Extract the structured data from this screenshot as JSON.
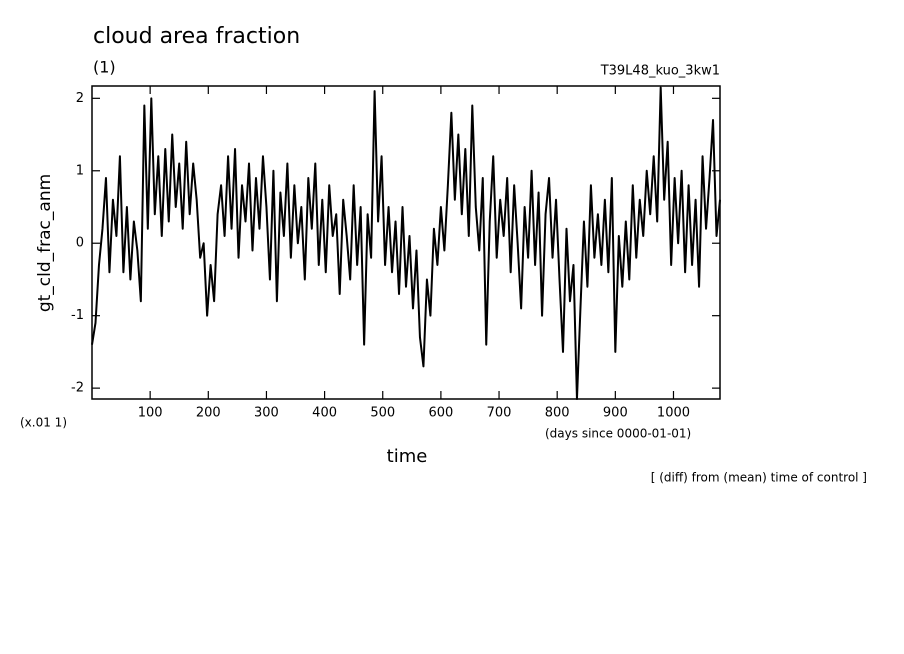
{
  "chart_data": {
    "type": "line",
    "title": "cloud area fraction",
    "subtitle": "(1)",
    "run_label": "T39L48_kuo_3kw1",
    "y_label": "gt_cld_frac_anm",
    "y_unit": "(x.01 1)",
    "x_label": "time",
    "x_unit": "(days since 0000-01-01)",
    "note": "[ (diff) from (mean) time of control ]",
    "color": "#000000",
    "xlim": [
      0,
      1080
    ],
    "ylim": [
      -2.15,
      2.17
    ],
    "xticks": [
      100,
      200,
      300,
      400,
      500,
      600,
      700,
      800,
      900,
      1000
    ],
    "yticks": [
      -2,
      -1,
      0,
      1,
      2
    ],
    "grid": false,
    "x": [
      0,
      6,
      12,
      18,
      24,
      30,
      36,
      42,
      48,
      54,
      60,
      66,
      72,
      78,
      84,
      90,
      96,
      102,
      108,
      114,
      120,
      126,
      132,
      138,
      144,
      150,
      156,
      162,
      168,
      174,
      180,
      186,
      192,
      198,
      204,
      210,
      216,
      222,
      228,
      234,
      240,
      246,
      252,
      258,
      264,
      270,
      276,
      282,
      288,
      294,
      300,
      306,
      312,
      318,
      324,
      330,
      336,
      342,
      348,
      354,
      360,
      366,
      372,
      378,
      384,
      390,
      396,
      402,
      408,
      414,
      420,
      426,
      432,
      438,
      444,
      450,
      456,
      462,
      468,
      474,
      480,
      486,
      492,
      498,
      504,
      510,
      516,
      522,
      528,
      534,
      540,
      546,
      552,
      558,
      564,
      570,
      576,
      582,
      588,
      594,
      600,
      606,
      612,
      618,
      624,
      630,
      636,
      642,
      648,
      654,
      660,
      666,
      672,
      678,
      684,
      690,
      696,
      702,
      708,
      714,
      720,
      726,
      732,
      738,
      744,
      750,
      756,
      762,
      768,
      774,
      780,
      786,
      792,
      798,
      804,
      810,
      816,
      822,
      828,
      834,
      840,
      846,
      852,
      858,
      864,
      870,
      876,
      882,
      888,
      894,
      900,
      906,
      912,
      918,
      924,
      930,
      936,
      942,
      948,
      954,
      960,
      966,
      972,
      978,
      984,
      990,
      996,
      1002,
      1008,
      1014,
      1020,
      1026,
      1032,
      1038,
      1044,
      1050,
      1056,
      1062,
      1068,
      1074,
      1080
    ],
    "values": [
      -1.4,
      -1.1,
      -0.3,
      0.2,
      0.9,
      -0.4,
      0.6,
      0.1,
      1.2,
      -0.4,
      0.5,
      -0.5,
      0.3,
      -0.1,
      -0.8,
      1.9,
      0.2,
      2.0,
      0.4,
      1.2,
      0.1,
      1.3,
      0.3,
      1.5,
      0.5,
      1.1,
      0.2,
      1.4,
      0.4,
      1.1,
      0.6,
      -0.2,
      0.0,
      -1.0,
      -0.3,
      -0.8,
      0.4,
      0.8,
      0.1,
      1.2,
      0.2,
      1.3,
      -0.2,
      0.8,
      0.3,
      1.1,
      -0.1,
      0.9,
      0.2,
      1.2,
      0.5,
      -0.5,
      1.0,
      -0.8,
      0.7,
      0.1,
      1.1,
      -0.2,
      0.8,
      0.0,
      0.5,
      -0.5,
      0.9,
      0.2,
      1.1,
      -0.3,
      0.6,
      -0.4,
      0.8,
      0.1,
      0.4,
      -0.7,
      0.6,
      0.1,
      -0.5,
      0.8,
      -0.3,
      0.5,
      -1.4,
      0.4,
      -0.2,
      2.1,
      0.3,
      1.2,
      -0.3,
      0.5,
      -0.4,
      0.3,
      -0.7,
      0.5,
      -0.6,
      0.1,
      -0.9,
      -0.1,
      -1.3,
      -1.7,
      -0.5,
      -1.0,
      0.2,
      -0.3,
      0.5,
      -0.1,
      0.8,
      1.8,
      0.6,
      1.5,
      0.4,
      1.3,
      0.1,
      1.9,
      0.5,
      -0.1,
      0.9,
      -1.4,
      0.3,
      1.2,
      -0.2,
      0.6,
      0.1,
      0.9,
      -0.4,
      0.8,
      0.0,
      -0.9,
      0.5,
      -0.2,
      1.0,
      -0.3,
      0.7,
      -1.0,
      0.4,
      0.9,
      -0.2,
      0.6,
      -0.5,
      -1.5,
      0.2,
      -0.8,
      -0.3,
      -2.15,
      -0.9,
      0.3,
      -0.6,
      0.8,
      -0.2,
      0.4,
      -0.3,
      0.6,
      -0.4,
      0.9,
      -1.5,
      0.1,
      -0.6,
      0.3,
      -0.5,
      0.8,
      -0.2,
      0.6,
      0.1,
      1.0,
      0.4,
      1.2,
      0.3,
      2.15,
      0.6,
      1.4,
      -0.3,
      0.9,
      0.0,
      1.0,
      -0.4,
      0.8,
      -0.3,
      0.6,
      -0.6,
      1.2,
      0.2,
      0.9,
      1.7,
      0.1,
      0.6
    ]
  }
}
